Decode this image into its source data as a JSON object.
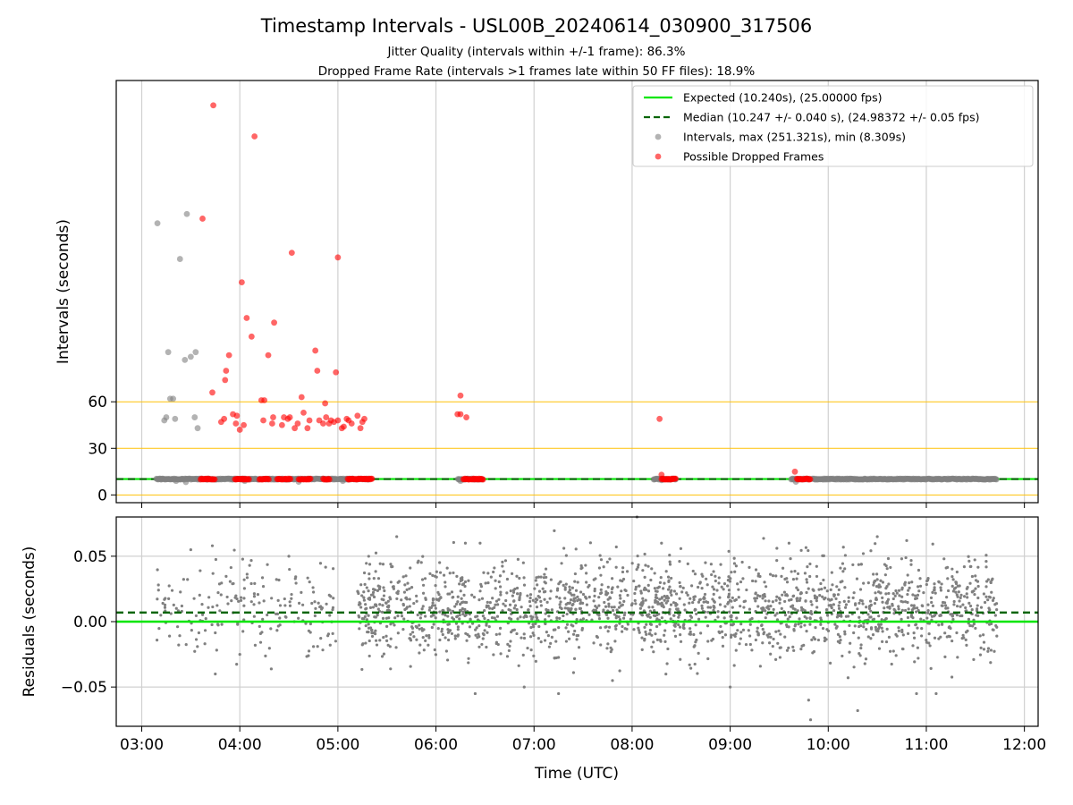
{
  "chart_data": [
    {
      "type": "scatter",
      "title": "Timestamp Intervals - USL00B_20240614_030900_317506",
      "subtitle_lines": [
        "Jitter Quality (intervals within +/-1 frame): 86.3%",
        "Dropped Frame Rate (intervals >1 frames late within 50 FF files): 18.9%"
      ],
      "xlabel": "",
      "ylabel": "Intervals (seconds)",
      "x_axis": {
        "type": "time",
        "unit": "hours UTC",
        "range": [
          2.74,
          12.14
        ],
        "ticks": [
          3,
          4,
          5,
          6,
          7,
          8,
          9,
          10,
          11,
          12
        ],
        "tick_labels": []
      },
      "y_axis": {
        "range": [
          -5,
          267
        ],
        "ticks": [
          0,
          30,
          60
        ],
        "tick_labels": [
          "0",
          "30",
          "60"
        ]
      },
      "reference_lines": [
        {
          "y": 0,
          "color": "#ffc107",
          "style": "solid"
        },
        {
          "y": 30,
          "color": "#ffc107",
          "style": "solid"
        },
        {
          "y": 60,
          "color": "#ffc107",
          "style": "solid"
        },
        {
          "y": 10.24,
          "color": "#00e600",
          "style": "solid",
          "series": "expected"
        },
        {
          "y": 10.247,
          "color": "#006400",
          "style": "dashed",
          "series": "median"
        }
      ],
      "grid": "vertical",
      "legend": {
        "placement": "top-right",
        "entries": [
          {
            "label": "Expected (10.240s), (25.00000 fps)",
            "kind": "line",
            "color": "#00e600"
          },
          {
            "label": "Median (10.247 +/- 0.040 s), (24.98372 +/- 0.05 fps)",
            "kind": "dashed",
            "color": "#006400"
          },
          {
            "label": "Intervals, max (251.321s), min (8.309s)",
            "kind": "marker",
            "color": "#808080"
          },
          {
            "label": "Possible Dropped Frames",
            "kind": "marker",
            "color": "#ff0000"
          }
        ]
      },
      "series": [
        {
          "name": "Intervals, max (251.321s), min (8.309s)",
          "color": "#808080",
          "baseline": {
            "y": 10.2,
            "x_from": 3.15,
            "x_to": 11.72,
            "gaps": [
              [
                5.32,
                6.22
              ],
              [
                6.48,
                8.22
              ],
              [
                8.45,
                9.62
              ],
              [
                9.82,
                9.84
              ]
            ]
          },
          "points": [
            [
              3.16,
              175
            ],
            [
              3.23,
              48
            ],
            [
              3.25,
              50
            ],
            [
              3.27,
              92
            ],
            [
              3.29,
              62
            ],
            [
              3.32,
              62
            ],
            [
              3.34,
              49
            ],
            [
              3.39,
              152
            ],
            [
              3.44,
              87
            ],
            [
              3.46,
              181
            ],
            [
              3.5,
              89
            ],
            [
              3.54,
              50
            ],
            [
              3.55,
              92
            ],
            [
              3.57,
              43
            ],
            [
              3.2,
              10
            ],
            [
              3.35,
              9
            ],
            [
              3.45,
              8.3
            ],
            [
              4.05,
              9
            ],
            [
              4.6,
              8.5
            ],
            [
              5.05,
              9
            ],
            [
              6.25,
              9
            ],
            [
              8.3,
              9.5
            ],
            [
              9.67,
              8.5
            ]
          ]
        },
        {
          "name": "Possible Dropped Frames",
          "color": "#ff0000",
          "points": [
            [
              3.73,
              251
            ],
            [
              4.15,
              231
            ],
            [
              3.62,
              178
            ],
            [
              4.02,
              137
            ],
            [
              4.07,
              114
            ],
            [
              4.12,
              102
            ],
            [
              4.29,
              90
            ],
            [
              4.35,
              111
            ],
            [
              4.53,
              156
            ],
            [
              5.0,
              153
            ],
            [
              3.72,
              66
            ],
            [
              3.81,
              47
            ],
            [
              3.84,
              49
            ],
            [
              3.85,
              74
            ],
            [
              3.86,
              80
            ],
            [
              3.89,
              90
            ],
            [
              3.93,
              52
            ],
            [
              3.97,
              51
            ],
            [
              3.96,
              46
            ],
            [
              4.0,
              42
            ],
            [
              4.04,
              45
            ],
            [
              4.22,
              61
            ],
            [
              4.24,
              48
            ],
            [
              4.25,
              61
            ],
            [
              4.33,
              46
            ],
            [
              4.34,
              50
            ],
            [
              4.43,
              45
            ],
            [
              4.45,
              50
            ],
            [
              4.49,
              49
            ],
            [
              4.51,
              50
            ],
            [
              4.56,
              43
            ],
            [
              4.59,
              46
            ],
            [
              4.63,
              63
            ],
            [
              4.65,
              53
            ],
            [
              4.69,
              43
            ],
            [
              4.71,
              48
            ],
            [
              4.77,
              93
            ],
            [
              4.79,
              80
            ],
            [
              4.81,
              48
            ],
            [
              4.85,
              46
            ],
            [
              4.87,
              59
            ],
            [
              4.88,
              50
            ],
            [
              4.91,
              46
            ],
            [
              4.93,
              48
            ],
            [
              4.96,
              47
            ],
            [
              4.98,
              79
            ],
            [
              5.0,
              48
            ],
            [
              5.04,
              43
            ],
            [
              5.06,
              44
            ],
            [
              5.09,
              49
            ],
            [
              5.11,
              48
            ],
            [
              5.14,
              46
            ],
            [
              5.2,
              51
            ],
            [
              5.23,
              43
            ],
            [
              5.25,
              47
            ],
            [
              5.27,
              49
            ],
            [
              6.22,
              52
            ],
            [
              6.25,
              52
            ],
            [
              6.25,
              64
            ],
            [
              6.31,
              50
            ],
            [
              8.28,
              49
            ],
            [
              8.3,
              13
            ],
            [
              9.66,
              15
            ]
          ],
          "clusters": [
            {
              "x_from": 3.6,
              "x_to": 3.75,
              "y": 10.2
            },
            {
              "x_from": 3.95,
              "x_to": 4.1,
              "y": 10.2
            },
            {
              "x_from": 4.2,
              "x_to": 4.3,
              "y": 10.2
            },
            {
              "x_from": 4.38,
              "x_to": 4.52,
              "y": 10.2
            },
            {
              "x_from": 4.6,
              "x_to": 4.72,
              "y": 10.2
            },
            {
              "x_from": 4.85,
              "x_to": 4.92,
              "y": 10.2
            },
            {
              "x_from": 5.1,
              "x_to": 5.35,
              "y": 10.2
            },
            {
              "x_from": 6.28,
              "x_to": 6.48,
              "y": 10.2
            },
            {
              "x_from": 8.3,
              "x_to": 8.45,
              "y": 10.2
            },
            {
              "x_from": 9.68,
              "x_to": 9.82,
              "y": 10.2
            }
          ]
        }
      ]
    },
    {
      "type": "scatter",
      "title": "",
      "xlabel": "Time (UTC)",
      "ylabel": "Residuals (seconds)",
      "x_axis": {
        "type": "time",
        "unit": "hours UTC",
        "range": [
          2.74,
          12.14
        ],
        "ticks": [
          3,
          4,
          5,
          6,
          7,
          8,
          9,
          10,
          11,
          12
        ],
        "tick_labels": [
          "03:00",
          "04:00",
          "05:00",
          "06:00",
          "07:00",
          "08:00",
          "09:00",
          "10:00",
          "11:00",
          "12:00"
        ]
      },
      "y_axis": {
        "range": [
          -0.08,
          0.08
        ],
        "ticks": [
          -0.05,
          0,
          0.05
        ],
        "tick_labels": [
          "−0.05",
          "0.00",
          "0.05"
        ]
      },
      "reference_lines": [
        {
          "y": 0,
          "color": "#00e600",
          "style": "solid",
          "series": "expected"
        },
        {
          "y": 0.007,
          "color": "#006400",
          "style": "dashed",
          "series": "median"
        }
      ],
      "grid": "both",
      "series": [
        {
          "name": "Residuals",
          "color": "#808080",
          "distribution": {
            "x_from": 3.15,
            "x_to": 11.72,
            "center": 0.01,
            "spread": 0.018,
            "segments": [
              {
                "x_from": 3.15,
                "x_to": 5.0,
                "count": 190
              },
              {
                "x_from": 5.2,
                "x_to": 11.72,
                "count": 1900
              }
            ]
          },
          "points": [
            [
              3.5,
              0.055
            ],
            [
              3.72,
              0.058
            ],
            [
              3.75,
              -0.04
            ],
            [
              4.0,
              -0.025
            ],
            [
              4.1,
              0.043
            ],
            [
              4.5,
              0.05
            ],
            [
              5.6,
              0.065
            ],
            [
              6.3,
              0.06
            ],
            [
              6.4,
              -0.055
            ],
            [
              6.45,
              0.06
            ],
            [
              6.9,
              -0.05
            ],
            [
              7.25,
              -0.055
            ],
            [
              7.8,
              -0.045
            ],
            [
              8.05,
              0.08
            ],
            [
              8.3,
              0.06
            ],
            [
              9.0,
              -0.05
            ],
            [
              9.6,
              0.06
            ],
            [
              9.8,
              -0.06
            ],
            [
              9.82,
              -0.075
            ],
            [
              10.3,
              -0.068
            ],
            [
              10.5,
              0.065
            ],
            [
              10.8,
              0.062
            ],
            [
              10.9,
              -0.055
            ],
            [
              11.1,
              -0.055
            ]
          ]
        }
      ]
    }
  ]
}
